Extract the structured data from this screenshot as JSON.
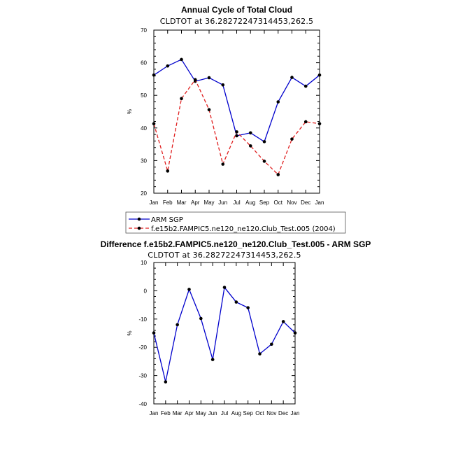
{
  "page_title": "Annual Cycle of Total Cloud",
  "chart_data": [
    {
      "type": "line",
      "title": "Annual Cycle of Total Cloud",
      "subtitle": "CLDTOT at 36.28272247314453,262.5",
      "xlabel": "",
      "ylabel": "%",
      "categories": [
        "Jan",
        "Feb",
        "Mar",
        "Apr",
        "May",
        "Jun",
        "Jul",
        "Aug",
        "Sep",
        "Oct",
        "Nov",
        "Dec",
        "Jan"
      ],
      "ylim": [
        20,
        70
      ],
      "yticks": [
        20,
        30,
        40,
        50,
        60,
        70
      ],
      "grid": false,
      "legend_position": "bottom",
      "series": [
        {
          "name": "ARM SGP",
          "color": "#0000cc",
          "dash": "solid",
          "values": [
            56.2,
            59.0,
            61.0,
            54.3,
            55.4,
            53.2,
            37.6,
            38.5,
            35.8,
            48.0,
            55.5,
            52.8,
            56.2
          ]
        },
        {
          "name": "f.e15b2.FAMPIC5.ne120_ne120.Club_Test.005 (2004)",
          "color": "#e02020",
          "dash": "dashed",
          "values": [
            41.3,
            26.8,
            49.0,
            54.8,
            45.6,
            28.9,
            38.8,
            34.5,
            29.8,
            25.7,
            36.6,
            41.9,
            41.3
          ]
        }
      ]
    },
    {
      "type": "line",
      "title": "Difference f.e15b2.FAMPIC5.ne120_ne120.Club_Test.005 - ARM SGP",
      "subtitle": "CLDTOT at 36.28272247314453,262.5",
      "xlabel": "",
      "ylabel": "%",
      "categories": [
        "Jan",
        "Feb",
        "Mar",
        "Apr",
        "May",
        "Jun",
        "Jul",
        "Aug",
        "Sep",
        "Oct",
        "Nov",
        "Dec",
        "Jan"
      ],
      "ylim": [
        -40,
        10
      ],
      "yticks": [
        -40,
        -30,
        -20,
        -10,
        0,
        10
      ],
      "grid": false,
      "series": [
        {
          "color": "#0000cc",
          "dash": "solid",
          "values": [
            -14.9,
            -32.2,
            -12.0,
            0.5,
            -9.8,
            -24.3,
            1.2,
            -4.0,
            -6.0,
            -22.3,
            -18.9,
            -10.9,
            -14.9
          ]
        }
      ]
    }
  ]
}
